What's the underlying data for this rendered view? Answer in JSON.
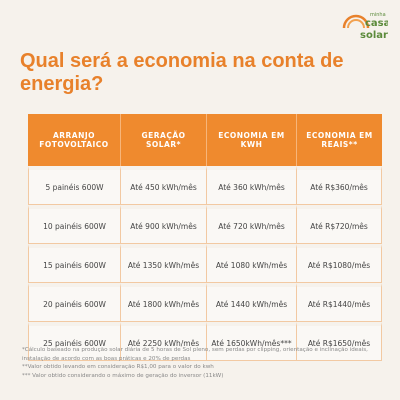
{
  "logo": {
    "small": "minha",
    "line1": "casa",
    "line2": "solar"
  },
  "title": "Qual será a economia na conta de energia?",
  "table": {
    "header": [
      "ARRANJO FOTOVOLTAICO",
      "GERAÇÃO SOLAR*",
      "ECONOMIA EM KWH",
      "ECONOMIA EM REAIS**"
    ],
    "rows": [
      [
        "5 painéis 600W",
        "Até 450 kWh/mês",
        "Até 360 kWh/mês",
        "Até R$360/mês"
      ],
      [
        "10 painéis 600W",
        "Até 900 kWh/mês",
        "Até 720 kWh/mês",
        "Até R$720/mês"
      ],
      [
        "15 painéis 600W",
        "Até 1350 kWh/mês",
        "Até 1080 kWh/mês",
        "Até R$1080/mês"
      ],
      [
        "20 painéis 600W",
        "Até 1800 kWh/mês",
        "Até 1440 kWh/mês",
        "Até R$1440/mês"
      ],
      [
        "25 painéis 600W",
        "Até 2250 kWh/mês",
        "Até 1650kWh/mês***",
        "Até R$1650/mês"
      ]
    ]
  },
  "footnotes": [
    "*Cálculo baseado na produção solar diária de 5 horas de Sol pleno, sem perdas por clipping, orientação e inclinação ideais, instalação de acordo com as boas práticas e 20% de perdas",
    "**Valor obtido levando em consideração R$1,00 para o valor do kwh",
    "*** Valor obtido considerando o máximo de geração do inversor (11kW)"
  ]
}
